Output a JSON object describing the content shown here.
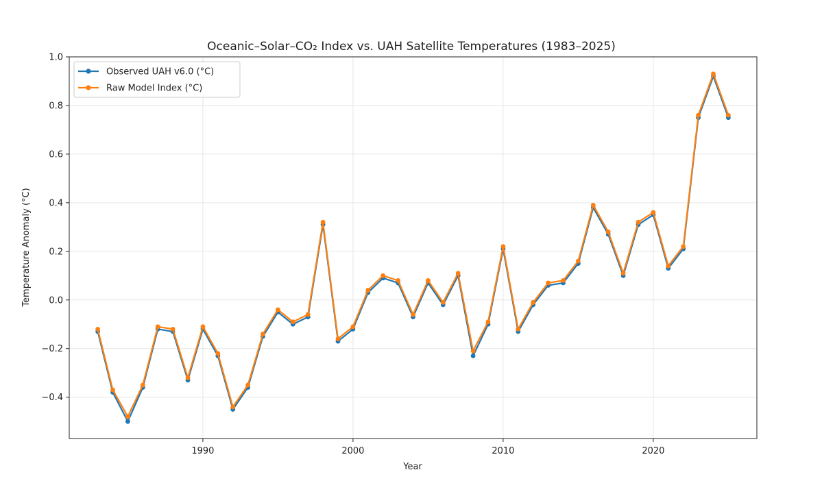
{
  "chart_data": {
    "type": "line",
    "title": "Oceanic–Solar–CO₂ Index vs. UAH Satellite Temperatures (1983–2025)",
    "xlabel": "Year",
    "ylabel": "Temperature Anomaly (°C)",
    "xlim": [
      1981.1,
      2026.9
    ],
    "ylim": [
      -0.57,
      1.0
    ],
    "xticks": [
      1990,
      2000,
      2010,
      2020
    ],
    "yticks": [
      -0.4,
      -0.2,
      0.0,
      0.2,
      0.4,
      0.6,
      0.8,
      1.0
    ],
    "xtick_labels": [
      "1990",
      "2000",
      "2010",
      "2020"
    ],
    "ytick_labels": [
      "−0.4",
      "−0.2",
      "0.0",
      "0.2",
      "0.4",
      "0.6",
      "0.8",
      "1.0"
    ],
    "grid": true,
    "legend_position": "top-left",
    "x": [
      1983,
      1984,
      1985,
      1986,
      1987,
      1988,
      1989,
      1990,
      1991,
      1992,
      1993,
      1994,
      1995,
      1996,
      1997,
      1998,
      1999,
      2000,
      2001,
      2002,
      2003,
      2004,
      2005,
      2006,
      2007,
      2008,
      2009,
      2010,
      2011,
      2012,
      2013,
      2014,
      2015,
      2016,
      2017,
      2018,
      2019,
      2020,
      2021,
      2022,
      2023,
      2024,
      2025
    ],
    "series": [
      {
        "name": "Observed UAH v6.0 (°C)",
        "color": "#1f77b4",
        "values": [
          -0.13,
          -0.38,
          -0.5,
          -0.36,
          -0.12,
          -0.13,
          -0.33,
          -0.12,
          -0.23,
          -0.45,
          -0.36,
          -0.15,
          -0.05,
          -0.1,
          -0.07,
          0.31,
          -0.17,
          -0.12,
          0.03,
          0.09,
          0.07,
          -0.07,
          0.07,
          -0.02,
          0.1,
          -0.23,
          -0.1,
          0.21,
          -0.13,
          -0.02,
          0.06,
          0.07,
          0.15,
          0.38,
          0.27,
          0.1,
          0.31,
          0.35,
          0.13,
          0.21,
          0.75,
          0.92,
          0.75
        ]
      },
      {
        "name": "Raw Model Index (°C)",
        "color": "#ff7f0e",
        "values": [
          -0.12,
          -0.37,
          -0.48,
          -0.35,
          -0.11,
          -0.12,
          -0.32,
          -0.11,
          -0.22,
          -0.44,
          -0.35,
          -0.14,
          -0.04,
          -0.09,
          -0.06,
          0.32,
          -0.16,
          -0.11,
          0.04,
          0.1,
          0.08,
          -0.06,
          0.08,
          -0.01,
          0.11,
          -0.21,
          -0.09,
          0.22,
          -0.12,
          -0.01,
          0.07,
          0.08,
          0.16,
          0.39,
          0.28,
          0.11,
          0.32,
          0.36,
          0.14,
          0.22,
          0.76,
          0.93,
          0.76
        ]
      }
    ]
  }
}
